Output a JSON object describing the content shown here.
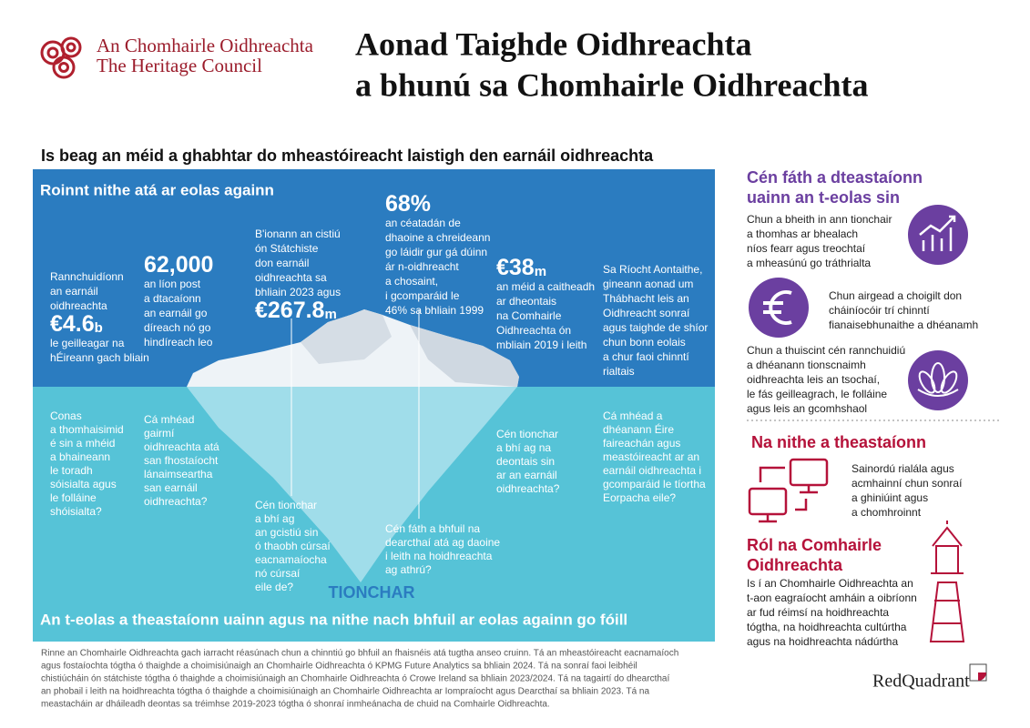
{
  "header": {
    "org_name_ga": "An Chomhairle Oidhreachta",
    "org_name_en": "The Heritage Council",
    "title_lines": [
      "Aonad Taighde Oidhreachta",
      "a bhunú sa Chomhairle Oidhreachta"
    ]
  },
  "subtitle": "Is beag an méid a ghabhtar do mheastóireacht laistigh den earnáil oidhreachta",
  "iceberg": {
    "top_heading": "Roinnt nithe atá ar eolas againn",
    "bottom_heading": "An t-eolas a theastaíonn uainn agus na nithe nach bhfuil ar eolas againn go fóill",
    "label": "TIONCHAR",
    "known": [
      {
        "lines_before": [
          "Rannchuidíonn",
          "an earnáil",
          "oidhreachta"
        ],
        "figure": "€4.6",
        "figure_unit": "b",
        "lines_after": [
          "le geilleagar na",
          "hÉireann gach bliain"
        ]
      },
      {
        "figure": "62,000",
        "lines_after": [
          "an líon post",
          "a dtacaíonn",
          "an earnáil go",
          "díreach nó go",
          "hindíreach leo"
        ]
      },
      {
        "lines_before": [
          "B'ionann an cistiú",
          "ón Státchiste",
          "don earnáil",
          "oidhreachta sa",
          "bhliain 2023 agus"
        ],
        "figure": "€267.8",
        "figure_unit": "m"
      },
      {
        "figure": "68%",
        "lines_after": [
          "an céatadán de",
          "dhaoine a chreideann",
          "go láidir gur gá dúinn",
          "ár n-oidhreacht",
          "a chosaint,",
          "i gcomparáid le",
          "46% sa bhliain 1999"
        ]
      },
      {
        "figure": "€38",
        "figure_unit": "m",
        "lines_after": [
          "an méid a caitheadh",
          "ar dheontais",
          "na Comhairle",
          "Oidhreachta ón",
          "mbliain 2019 i leith"
        ]
      },
      {
        "lines_before": [
          "Sa Ríocht Aontaithe,",
          "gineann aonad um",
          "Thábhacht leis an",
          "Oidhreacht sonraí",
          "agus taighde de shíor",
          "chun bonn eolais",
          "a chur faoi chinntí",
          "rialtais"
        ]
      }
    ],
    "unknown": [
      [
        "Conas",
        "a thomhaisimid",
        "é sin a mhéid",
        "a bhaineann",
        "le toradh",
        "sóisialta agus",
        "le folláine",
        "shóisialta?"
      ],
      [
        "Cá mhéad",
        "gairmí",
        "oidhreachta atá",
        "san fhostaíocht",
        "lánaimseartha",
        "san earnáil",
        "oidhreachta?"
      ],
      [
        "Cén tionchar",
        "a bhí ag",
        "an gcistiú sin",
        "ó thaobh cúrsaí",
        "eacnamaíocha",
        "nó cúrsaí",
        "eile de?"
      ],
      [
        "Cén fáth a bhfuil na",
        "dearcthaí atá ag daoine",
        "i leith na hoidhreachta",
        "ag athrú?"
      ],
      [
        "Cén tionchar",
        "a bhí ag na",
        "deontais sin",
        "ar an earnáil",
        "oidhreachta?"
      ],
      [
        "Cá mhéad a",
        "dhéanann Éire",
        "faireachán agus",
        "meastóireacht ar an",
        "earnáil oidhreachta i",
        "gcomparáid le tíortha",
        "Eorpacha eile?"
      ]
    ]
  },
  "side": {
    "why_heading": [
      "Cén fáth a dteastaíonn",
      "uainn an t-eolas sin"
    ],
    "why_items": [
      [
        "Chun a bheith in ann tionchair",
        "a thomhas ar bhealach",
        "níos fearr agus treochtaí",
        "a mheasúnú go tráthrialta"
      ],
      [
        "Chun airgead a choigilt don",
        "cháiníocóir trí chinntí",
        "fianaisebhunaithe a dhéanamh"
      ],
      [
        "Chun a thuiscint cén rannchuidiú",
        "a dhéanann tionscnaimh",
        "oidhreachta leis an tsochaí,",
        "le fás geilleagrach, le folláine",
        "agus leis an gcomhshaol"
      ]
    ],
    "needs_heading": "Na nithe a theastaíonn",
    "needs_text": [
      "Sainordú rialála agus",
      "acmhainní chun sonraí",
      "a ghiniúint agus",
      "a chomhroinnt"
    ],
    "role_heading": [
      "Ról na Comhairle",
      "Oidhreachta"
    ],
    "role_text": [
      "Is í an Chomhairle Oidhreachta an",
      "t-aon eagraíocht amháin a oibríonn",
      "ar fud réimsí na hoidhreachta",
      "tógtha, na hoidhreachta cultúrtha",
      "agus na hoidhreachta nádúrtha"
    ]
  },
  "footnote": [
    "Rinne an Chomhairle Oidhreachta gach iarracht réasúnach chun a chinntiú go bhfuil an fhaisnéis atá tugtha anseo cruinn. Tá an mheastóireacht eacnamaíoch",
    "agus fostaíochta tógtha ó thaighde a choimisiúnaigh an Chomhairle Oidhreachta ó KPMG Future Analytics sa bhliain 2024. Tá na sonraí faoi leibhéil",
    "chistiúcháin ón státchiste tógtha ó thaighde a choimisiúnaigh an Chomhairle Oidhreachta ó Crowe Ireland sa bhliain 2023/2024. Tá na tagairtí do dhearcthaí",
    "an phobail i leith na hoidhreachta tógtha ó thaighde a choimisiúnaigh an Chomhairle Oidhreachta ar Iompraíocht agus Dearcthaí sa bhliain 2023. Tá na",
    "meastacháin ar dháileadh deontas sa tréimhse 2019-2023 tógtha ó shonraí inmheánacha de chuid na Comhairle Oidhreachta."
  ],
  "credit": "RedQuadrant"
}
